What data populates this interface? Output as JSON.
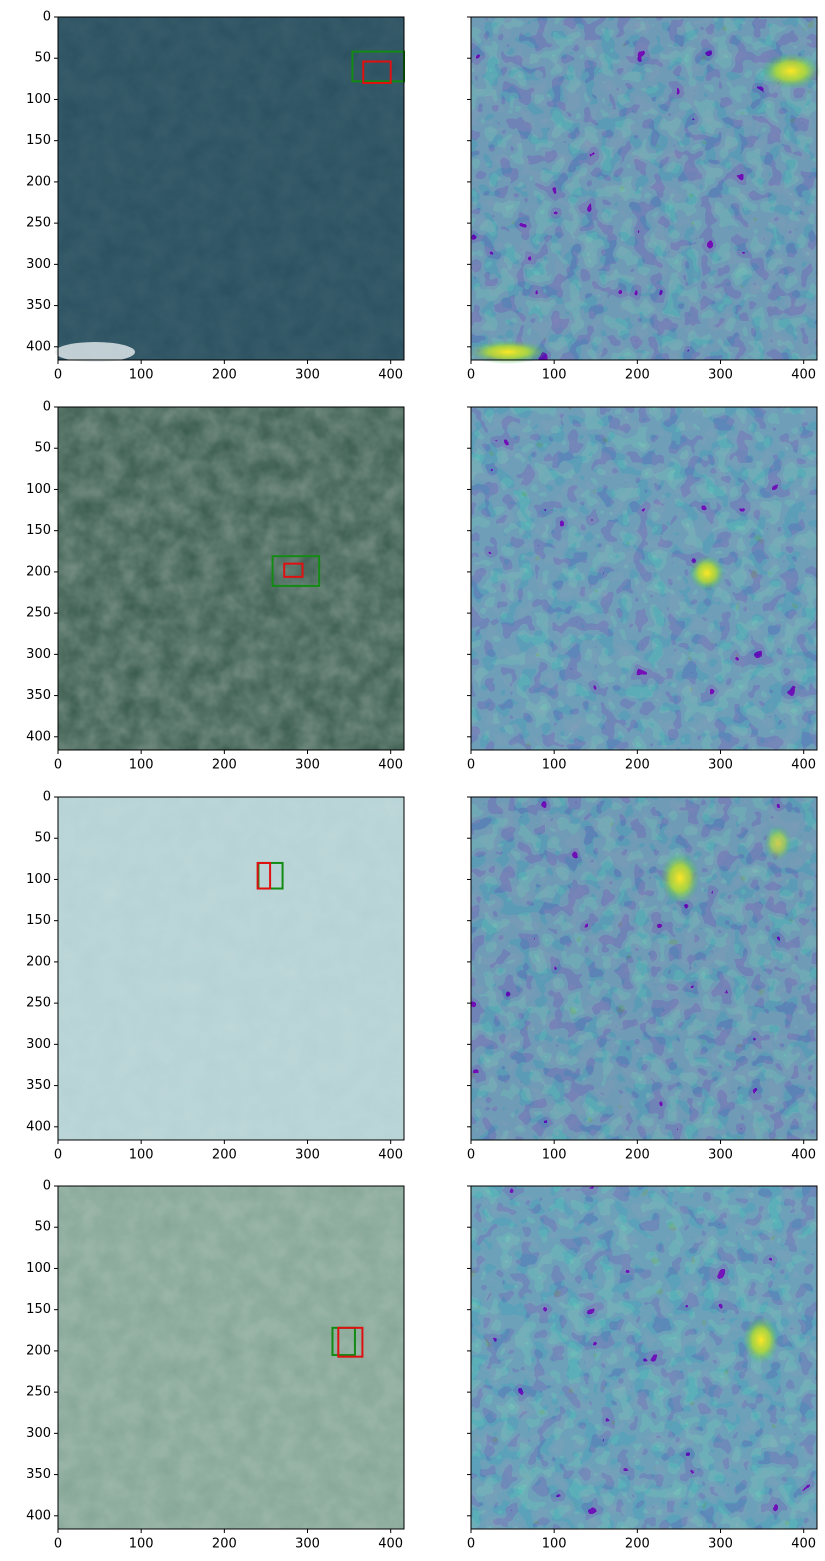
{
  "chart_data": [
    {
      "type": "image",
      "xlim": [
        0,
        416
      ],
      "ylim": [
        416,
        0
      ],
      "xticks": [
        0,
        100,
        200,
        300,
        400
      ],
      "yticks": [
        0,
        50,
        100,
        150,
        200,
        250,
        300,
        350,
        400
      ],
      "ytick_labels": true,
      "boxes": [
        {
          "color": "green",
          "x": [
            354,
            416
          ],
          "y": [
            42,
            78
          ]
        },
        {
          "color": "red",
          "x": [
            367,
            400
          ],
          "y": [
            54,
            80
          ]
        }
      ]
    },
    {
      "type": "image",
      "xlim": [
        0,
        416
      ],
      "ylim": [
        416,
        0
      ],
      "xticks": [
        0,
        100,
        200,
        300,
        400
      ],
      "yticks": [
        0,
        50,
        100,
        150,
        200,
        250,
        300,
        350,
        400
      ],
      "ytick_labels": false,
      "boxes": []
    },
    {
      "type": "image",
      "xlim": [
        0,
        416
      ],
      "ylim": [
        416,
        0
      ],
      "xticks": [
        0,
        100,
        200,
        300,
        400
      ],
      "yticks": [
        0,
        50,
        100,
        150,
        200,
        250,
        300,
        350,
        400
      ],
      "ytick_labels": true,
      "boxes": [
        {
          "color": "green",
          "x": [
            258,
            314
          ],
          "y": [
            181,
            217
          ]
        },
        {
          "color": "red",
          "x": [
            272,
            294
          ],
          "y": [
            190,
            206
          ]
        }
      ]
    },
    {
      "type": "image",
      "xlim": [
        0,
        416
      ],
      "ylim": [
        416,
        0
      ],
      "xticks": [
        0,
        100,
        200,
        300,
        400
      ],
      "yticks": [
        0,
        50,
        100,
        150,
        200,
        250,
        300,
        350,
        400
      ],
      "ytick_labels": false,
      "boxes": []
    },
    {
      "type": "image",
      "xlim": [
        0,
        416
      ],
      "ylim": [
        416,
        0
      ],
      "xticks": [
        0,
        100,
        200,
        300,
        400
      ],
      "yticks": [
        0,
        50,
        100,
        150,
        200,
        250,
        300,
        350,
        400
      ],
      "ytick_labels": true,
      "boxes": [
        {
          "color": "green",
          "x": [
            241,
            270
          ],
          "y": [
            80,
            111
          ]
        },
        {
          "color": "red",
          "x": [
            240,
            255
          ],
          "y": [
            80,
            111
          ]
        }
      ]
    },
    {
      "type": "image",
      "xlim": [
        0,
        416
      ],
      "ylim": [
        416,
        0
      ],
      "xticks": [
        0,
        100,
        200,
        300,
        400
      ],
      "yticks": [
        0,
        50,
        100,
        150,
        200,
        250,
        300,
        350,
        400
      ],
      "ytick_labels": false,
      "boxes": []
    },
    {
      "type": "image",
      "xlim": [
        0,
        416
      ],
      "ylim": [
        416,
        0
      ],
      "xticks": [
        0,
        100,
        200,
        300,
        400
      ],
      "yticks": [
        0,
        50,
        100,
        150,
        200,
        250,
        300,
        350,
        400
      ],
      "ytick_labels": true,
      "boxes": [
        {
          "color": "green",
          "x": [
            330,
            357
          ],
          "y": [
            172,
            205
          ]
        },
        {
          "color": "red",
          "x": [
            337,
            366
          ],
          "y": [
            172,
            207
          ]
        }
      ]
    },
    {
      "type": "image",
      "xlim": [
        0,
        416
      ],
      "ylim": [
        416,
        0
      ],
      "xticks": [
        0,
        100,
        200,
        300,
        400
      ],
      "yticks": [
        0,
        50,
        100,
        150,
        200,
        250,
        300,
        350,
        400
      ],
      "ytick_labels": false,
      "boxes": []
    }
  ]
}
